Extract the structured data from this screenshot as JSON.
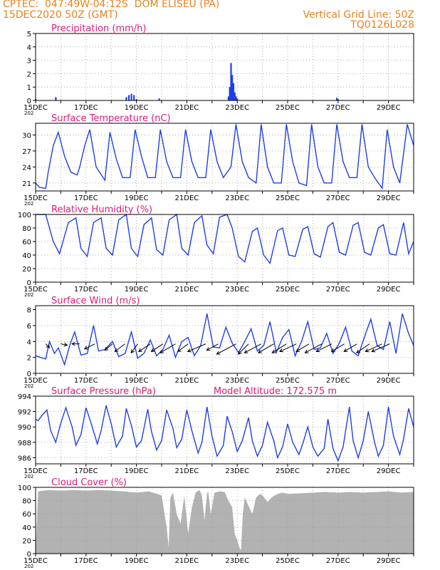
{
  "header": {
    "line1_left": "CPTEC:  047:49W-04:12S  DOM ELISEU (PA)",
    "line2_left": "15DEC2020 50Z (GMT)",
    "line1_right": "Vertical Grid Line: 50Z",
    "line2_right": "TQ0126L028"
  },
  "colors": {
    "header": "#e8821e",
    "title": "#e0187a",
    "series": "#1f3fe8",
    "cloud": "#b2b2b2"
  },
  "x_axis": {
    "tick_labels": [
      "15DEC",
      "17DEC",
      "19DEC",
      "21DEC",
      "23DEC",
      "25DEC",
      "27DEC",
      "29DEC"
    ],
    "year_fragment": "202",
    "range_days": [
      0,
      15
    ]
  },
  "chart_data": [
    {
      "id": "precip",
      "type": "bar",
      "title": "Precipitation (mm/h)",
      "ylim": [
        0,
        5
      ],
      "yticks": [
        0,
        1,
        2,
        3,
        4,
        5
      ],
      "grid": true,
      "x": [
        0.0,
        0.8,
        3.6,
        3.7,
        3.8,
        3.9,
        4.0,
        4.9,
        7.65,
        7.7,
        7.75,
        7.8,
        7.85,
        7.9,
        7.95,
        8.0,
        11.95,
        12.0
      ],
      "values": [
        0.1,
        0.25,
        0.25,
        0.4,
        0.5,
        0.4,
        0.1,
        0.15,
        0.3,
        1.0,
        2.8,
        1.9,
        1.3,
        0.6,
        0.3,
        0.15,
        0.2,
        0.1
      ]
    },
    {
      "id": "temp",
      "type": "line",
      "title": "Surface Temperature (nC)",
      "ylim": [
        19.5,
        32.2
      ],
      "yticks": [
        21,
        24,
        27,
        30
      ],
      "grid": true,
      "x": [
        0,
        0.15,
        0.4,
        0.5,
        0.7,
        0.9,
        1.15,
        1.4,
        1.65,
        1.75,
        1.95,
        2.15,
        2.4,
        2.75,
        2.95,
        3.2,
        3.45,
        3.75,
        3.95,
        4.2,
        4.45,
        4.75,
        4.95,
        5.2,
        5.45,
        5.75,
        5.95,
        6.2,
        6.45,
        6.75,
        6.95,
        7.2,
        7.45,
        7.75,
        7.95,
        8.2,
        8.45,
        8.75,
        8.95,
        9.2,
        9.45,
        9.75,
        9.95,
        10.2,
        10.45,
        10.75,
        10.95,
        11.2,
        11.45,
        11.75,
        11.95,
        12.2,
        12.45,
        12.75,
        12.95,
        13.2,
        13.45,
        13.75,
        13.95,
        14.2,
        14.45,
        14.75,
        15
      ],
      "values": [
        21,
        20.2,
        20,
        23,
        28,
        30.5,
        26,
        23,
        22.5,
        24,
        28,
        31,
        24,
        21.5,
        30.5,
        25.5,
        22,
        22,
        31,
        26,
        22,
        22,
        31,
        25,
        22,
        22,
        31,
        25,
        22,
        22,
        31,
        25,
        22,
        24,
        32,
        25,
        22,
        21,
        32,
        24,
        21,
        21,
        32,
        25,
        21,
        20.5,
        32,
        24,
        21,
        21,
        32,
        25,
        22,
        22,
        32,
        24,
        22,
        20,
        31,
        24,
        21,
        32,
        28
      ]
    },
    {
      "id": "rh",
      "type": "line",
      "title": "Relative Humidity (%)",
      "ylim": [
        0,
        100
      ],
      "yticks": [
        0,
        20,
        40,
        60,
        80,
        100
      ],
      "grid": true,
      "x": [
        0,
        0.4,
        0.7,
        0.95,
        1.3,
        1.6,
        1.8,
        2.05,
        2.3,
        2.6,
        2.8,
        3.05,
        3.3,
        3.6,
        3.8,
        4.05,
        4.3,
        4.6,
        4.8,
        5.05,
        5.3,
        5.6,
        5.8,
        6.05,
        6.3,
        6.6,
        6.8,
        7.05,
        7.3,
        7.6,
        7.8,
        8.05,
        8.3,
        8.6,
        8.8,
        9.05,
        9.3,
        9.6,
        9.8,
        10.05,
        10.3,
        10.6,
        10.8,
        11.05,
        11.3,
        11.6,
        11.8,
        12.05,
        12.3,
        12.6,
        12.8,
        13.05,
        13.3,
        13.6,
        13.8,
        14.05,
        14.3,
        14.6,
        14.8,
        15
      ],
      "values": [
        100,
        100,
        60,
        42,
        88,
        95,
        50,
        38,
        88,
        95,
        50,
        40,
        92,
        100,
        50,
        38,
        85,
        95,
        48,
        40,
        92,
        100,
        50,
        40,
        88,
        98,
        55,
        42,
        96,
        100,
        80,
        38,
        30,
        75,
        80,
        40,
        28,
        76,
        80,
        40,
        38,
        78,
        82,
        42,
        37,
        82,
        88,
        44,
        40,
        84,
        88,
        44,
        40,
        80,
        85,
        42,
        40,
        88,
        42,
        60
      ]
    },
    {
      "id": "wind",
      "type": "line",
      "title": "Surface Wind (m/s)",
      "ylim": [
        0,
        8.5
      ],
      "yticks": [
        0,
        2,
        4,
        6,
        8
      ],
      "grid": true,
      "x": [
        0,
        0.4,
        0.55,
        0.75,
        0.9,
        1.15,
        1.35,
        1.55,
        1.8,
        2.05,
        2.3,
        2.5,
        2.75,
        3.05,
        3.3,
        3.55,
        3.8,
        4.05,
        4.3,
        4.55,
        4.8,
        5.05,
        5.3,
        5.55,
        5.8,
        6.05,
        6.3,
        6.55,
        6.8,
        7.05,
        7.3,
        7.55,
        7.8,
        8.05,
        8.3,
        8.55,
        8.8,
        9.05,
        9.3,
        9.55,
        9.8,
        10.05,
        10.3,
        10.55,
        10.8,
        11.05,
        11.3,
        11.55,
        11.8,
        12.05,
        12.3,
        12.55,
        12.8,
        13.05,
        13.3,
        13.55,
        13.8,
        14.05,
        14.3,
        14.55,
        14.8,
        15
      ],
      "values": [
        2.2,
        1.8,
        4,
        2.5,
        3.2,
        1.1,
        3.5,
        5.2,
        2.3,
        2.5,
        6,
        2.8,
        3,
        4,
        2.1,
        2.5,
        5.2,
        1.9,
        2.5,
        4.2,
        2.2,
        3,
        4.8,
        2,
        4,
        4.5,
        2.2,
        3.5,
        7.5,
        3.3,
        3.2,
        5.8,
        3.8,
        2.6,
        4,
        5.6,
        2.8,
        3.5,
        6.5,
        2.6,
        4.5,
        5.5,
        2.2,
        4,
        6.5,
        3,
        3.2,
        5,
        2.5,
        3.8,
        5.8,
        2.8,
        2.2,
        4.6,
        6.8,
        3.5,
        3,
        6.5,
        2.5,
        7.5,
        5,
        3.5
      ],
      "vectors": {
        "x": [
          0.4,
          1.0,
          1.75,
          2.35,
          3.05,
          3.55,
          4.05,
          4.55,
          5.05,
          5.55,
          6.05,
          6.75,
          7.25,
          7.95,
          8.45,
          8.95,
          9.45,
          9.95,
          10.35,
          10.85,
          11.35,
          11.75,
          12.25,
          12.75,
          13.25,
          13.75,
          14.05
        ],
        "u": [
          0.3,
          0.5,
          -0.6,
          -0.8,
          -0.6,
          -0.8,
          -0.5,
          -0.9,
          -0.9,
          -1.2,
          -0.8,
          -1.4,
          -0.9,
          -1.5,
          -0.8,
          -1.3,
          -1.2,
          -1.1,
          -1.3,
          -1.0,
          -1.3,
          -1.2,
          -1.0,
          -1.0,
          -1.0,
          -1.3,
          -1.4
        ],
        "v": [
          -0.3,
          -0.1,
          0.0,
          -0.4,
          -0.5,
          -0.6,
          -0.7,
          -0.6,
          -0.6,
          -0.7,
          -0.6,
          -0.6,
          -0.5,
          -0.8,
          -0.8,
          -0.7,
          -0.7,
          -0.7,
          -0.6,
          -0.6,
          -0.7,
          -0.6,
          -0.6,
          -0.6,
          -0.7,
          -0.6,
          -0.6
        ]
      }
    },
    {
      "id": "press",
      "type": "line",
      "title": "Surface Pressure (hPa)",
      "note": "Model Altitude: 172.575 m",
      "ylim": [
        985.2,
        994
      ],
      "yticks": [
        986,
        988,
        990,
        992,
        994
      ],
      "grid": true,
      "x": [
        0,
        0.1,
        0.25,
        0.45,
        0.6,
        0.8,
        1.0,
        1.2,
        1.45,
        1.6,
        1.8,
        2.0,
        2.2,
        2.45,
        2.6,
        2.8,
        3.0,
        3.2,
        3.45,
        3.6,
        3.8,
        4.0,
        4.2,
        4.45,
        4.6,
        4.8,
        5.0,
        5.2,
        5.45,
        5.6,
        5.8,
        6.0,
        6.2,
        6.45,
        6.6,
        6.8,
        7.0,
        7.2,
        7.45,
        7.6,
        7.8,
        8.0,
        8.2,
        8.45,
        8.6,
        8.8,
        9.0,
        9.2,
        9.45,
        9.6,
        9.8,
        10.0,
        10.2,
        10.45,
        10.6,
        10.8,
        11.0,
        11.2,
        11.45,
        11.6,
        11.8,
        12.0,
        12.2,
        12.45,
        12.6,
        12.8,
        13.0,
        13.2,
        13.45,
        13.6,
        13.8,
        14.0,
        14.2,
        14.45,
        14.6,
        14.8,
        15
      ],
      "values": [
        991,
        990.8,
        991.5,
        992.2,
        989.5,
        988,
        990.5,
        992.5,
        990,
        987.6,
        989,
        992.5,
        990.5,
        987.8,
        989.5,
        992.8,
        990.4,
        987.4,
        988.8,
        992.4,
        990.2,
        987.4,
        988.2,
        992.3,
        989.4,
        987,
        988.2,
        992.2,
        989.8,
        987.3,
        988.4,
        992.2,
        989.5,
        986.6,
        988,
        992.6,
        988.8,
        986.2,
        987.6,
        991.4,
        989.4,
        986.8,
        988.2,
        991.2,
        988.2,
        986.2,
        987.6,
        990.6,
        988.2,
        986,
        987.4,
        990.4,
        988,
        986.4,
        987.8,
        990,
        987.4,
        986.2,
        987.2,
        991,
        987.2,
        985.6,
        987.4,
        992.6,
        988.2,
        986,
        988.2,
        992,
        988,
        986.2,
        987.6,
        992.6,
        988.8,
        986.4,
        988.4,
        992.4,
        990
      ]
    },
    {
      "id": "cloud",
      "type": "area",
      "title": "Cloud Cover (%)",
      "ylim": [
        0,
        100
      ],
      "yticks": [
        0,
        20,
        40,
        60,
        80,
        100
      ],
      "grid": true,
      "x": [
        0,
        0.1,
        0.5,
        1,
        1.5,
        2,
        2.5,
        3,
        3.5,
        4,
        4.5,
        5,
        5.2,
        5.28,
        5.35,
        5.45,
        5.6,
        5.75,
        5.9,
        6.05,
        6.2,
        6.35,
        6.5,
        6.6,
        6.7,
        6.8,
        6.85,
        6.95,
        7.1,
        7.3,
        7.5,
        7.65,
        7.8,
        7.9,
        8.0,
        8.08,
        8.15,
        8.22,
        8.3,
        8.45,
        8.6,
        8.75,
        8.9,
        9.0,
        9.2,
        9.4,
        9.6,
        9.8,
        10,
        10.5,
        11,
        11.5,
        12,
        12.5,
        13,
        13.5,
        14,
        14.5,
        15
      ],
      "values": [
        0,
        94,
        96,
        95,
        96,
        95,
        96,
        95,
        94,
        92,
        94,
        88,
        40,
        10,
        85,
        92,
        60,
        45,
        88,
        30,
        70,
        92,
        96,
        88,
        50,
        90,
        94,
        60,
        92,
        94,
        93,
        80,
        70,
        30,
        20,
        10,
        5,
        60,
        85,
        72,
        60,
        85,
        90,
        88,
        78,
        86,
        90,
        92,
        90,
        91,
        92,
        93,
        92,
        93,
        92,
        93,
        94,
        92,
        93
      ]
    }
  ]
}
